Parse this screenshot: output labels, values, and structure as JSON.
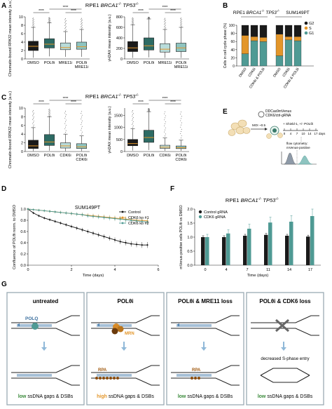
{
  "panels": {
    "A": {
      "letter": "A",
      "title_pre": "RPE1 ",
      "title_gene": "BRCA1",
      "title_sup1": "-/-",
      "title_gene2": " TP53",
      "title_sup2": "-/-"
    },
    "B": {
      "letter": "B",
      "title1_pre": "RPE1 ",
      "title1_gene": "BRCA1",
      "title1_sup1": "-/-",
      "title1_gene2": " TP53",
      "title1_sup2": "-/-",
      "title2": "SUM149PT"
    },
    "C": {
      "letter": "C",
      "title_pre": "RPE1 ",
      "title_gene": "BRCA1",
      "title_sup1": "-/-",
      "title_gene2": " TP53",
      "title_sup2": "-/-"
    },
    "D": {
      "letter": "D",
      "title": "SUM149PT"
    },
    "E": {
      "letter": "E",
      "plasmid_l1": "DDCas9mVenus",
      "plasmid_l2": "CDK6/ctrl-gRNA",
      "moi": "MOI ~0.5",
      "treat": "+ Shield-1, +/- POLθi",
      "days_label": "days",
      "flow_l1": "flow cytometry:",
      "flow_l2": "mVenus-positive"
    },
    "F": {
      "letter": "F",
      "title_pre": "RPE1 ",
      "title_gene": "BRCA1",
      "title_sup1": "-/-",
      "title_gene2": " TP53",
      "title_sup2": "-/-"
    },
    "G": {
      "letter": "G",
      "boxes": [
        {
          "title": "untreated",
          "label": "POLQ",
          "bottom_hl": "low",
          "bottom_rest": " ssDNA gaps & DSBs"
        },
        {
          "title": "POLθi",
          "label": "MRN",
          "label2": "RPA",
          "bottom_hl": "high",
          "bottom_rest": " ssDNA gaps & DSBs"
        },
        {
          "title": "POLθi & MRE11 loss",
          "label": "RPA",
          "bottom_hl": "low",
          "bottom_rest": " ssDNA gaps & DSBs"
        },
        {
          "title": "POLθi & CDK6 loss",
          "mid_text": "decreased S-phase entry",
          "bottom_hl": "low",
          "bottom_rest": " ssDNA gaps & DSBs"
        }
      ]
    }
  },
  "colors": {
    "black": "#1a1a1a",
    "teal_dark": "#2d6b64",
    "teal": "#4f9a94",
    "teal_light": "#8ec4c0",
    "teal_pale": "#b9dcda",
    "orange": "#e3962a",
    "brown": "#a05a10",
    "green_text": "#3a8a3a",
    "grey_box": "#9aaab4"
  },
  "chart_data": [
    {
      "id": "A-left",
      "type": "box",
      "ylabel": "Chromatin-bound RPA32 mean intensity (a.u.)",
      "ylim": [
        0,
        10
      ],
      "yticks": [
        "0",
        "2",
        "4",
        "6",
        "8",
        "10"
      ],
      "categories": [
        "DMSO",
        "POLθi",
        "MRE11i",
        "POLθi\nMRE11i"
      ],
      "stats": [
        {
          "q1": 2.0,
          "median": 3.0,
          "q3": 4.2,
          "whisker_low": 0.3,
          "whisker_high": 7.5
        },
        {
          "q1": 2.6,
          "median": 3.5,
          "q3": 4.8,
          "whisker_low": 0.6,
          "whisker_high": 8.6
        },
        {
          "q1": 2.2,
          "median": 2.7,
          "q3": 3.8,
          "whisker_low": 0.5,
          "whisker_high": 6.5
        },
        {
          "q1": 2.3,
          "median": 2.9,
          "q3": 4.0,
          "whisker_low": 0.5,
          "whisker_high": 7.0
        }
      ],
      "significance": [
        "****",
        "****",
        "****"
      ]
    },
    {
      "id": "A-right",
      "type": "box",
      "ylabel": "γH2AX mean intensity (a.u.)",
      "ylim": [
        0,
        800
      ],
      "yticks": [
        "0",
        "200",
        "400",
        "600",
        "800"
      ],
      "categories": [
        "DMSO",
        "POLθi",
        "MRE11i",
        "POLθi\nMRE11i"
      ],
      "stats": [
        {
          "q1": 140,
          "median": 210,
          "q3": 330,
          "whisker_low": 20,
          "whisker_high": 650
        },
        {
          "q1": 170,
          "median": 250,
          "q3": 400,
          "whisker_low": 30,
          "whisker_high": 760
        },
        {
          "q1": 130,
          "median": 185,
          "q3": 290,
          "whisker_low": 20,
          "whisker_high": 560
        },
        {
          "q1": 140,
          "median": 210,
          "q3": 300,
          "whisker_low": 20,
          "whisker_high": 600
        }
      ],
      "significance": [
        "****",
        "****",
        "****"
      ]
    },
    {
      "id": "B",
      "type": "stacked-bar",
      "ylabel": "Cells in cell cycle phase (%)",
      "ylim": [
        0,
        100
      ],
      "yticks": [
        "0",
        "20",
        "40",
        "60",
        "80",
        "100"
      ],
      "categories": [
        "DMSO",
        "CDK6i",
        "CDK6i & POLθi",
        "DMSO",
        "CDK6i",
        "CDK6i & POLθi"
      ],
      "groups": [
        "RPE1",
        "SUM149PT"
      ],
      "series": [
        {
          "name": "G1",
          "values": [
            30,
            62,
            60,
            25,
            64,
            62
          ]
        },
        {
          "name": "S",
          "values": [
            45,
            10,
            10,
            53,
            8,
            10
          ]
        },
        {
          "name": "G2",
          "values": [
            25,
            28,
            30,
            22,
            28,
            28
          ]
        }
      ]
    },
    {
      "id": "C-left",
      "type": "box",
      "ylabel": "Chromatin-bound RPA32 mean intensity (a.u.)",
      "ylim": [
        0,
        10
      ],
      "yticks": [
        "0",
        "2",
        "4",
        "6",
        "8",
        "10"
      ],
      "categories": [
        "DMSO",
        "POLθi",
        "CDK6i",
        "POLθi\nCDK6i"
      ],
      "stats": [
        {
          "q1": 0.7,
          "median": 1.3,
          "q3": 2.6,
          "whisker_low": 0.1,
          "whisker_high": 5.5
        },
        {
          "q1": 1.4,
          "median": 2.2,
          "q3": 3.9,
          "whisker_low": 0.2,
          "whisker_high": 8.0
        },
        {
          "q1": 0.8,
          "median": 1.3,
          "q3": 2.0,
          "whisker_low": 0.1,
          "whisker_high": 4.0
        },
        {
          "q1": 0.7,
          "median": 1.1,
          "q3": 1.8,
          "whisker_low": 0.1,
          "whisker_high": 3.6
        }
      ],
      "significance": [
        "****",
        "****",
        "****"
      ]
    },
    {
      "id": "C-right",
      "type": "box",
      "ylabel": "γH2AX mean intensity (a.u.)",
      "ylim": [
        0,
        1800
      ],
      "yticks": [
        "0",
        "500",
        "1000",
        "1500"
      ],
      "categories": [
        "DMSO",
        "POLθi",
        "CDK6i",
        "POLθi\nCDK6i"
      ],
      "stats": [
        {
          "q1": 240,
          "median": 330,
          "q3": 500,
          "whisker_low": 40,
          "whisker_high": 950
        },
        {
          "q1": 380,
          "median": 580,
          "q3": 880,
          "whisker_low": 60,
          "whisker_high": 1650
        },
        {
          "q1": 130,
          "median": 180,
          "q3": 260,
          "whisker_low": 30,
          "whisker_high": 560
        },
        {
          "q1": 120,
          "median": 160,
          "q3": 230,
          "whisker_low": 30,
          "whisker_high": 470
        }
      ],
      "significance": [
        "****",
        "****",
        "****"
      ]
    },
    {
      "id": "D",
      "type": "line",
      "xlabel": "Time (days)",
      "ylabel": "Confluence of POLθi norm. to DMSO",
      "xlim": [
        0,
        6
      ],
      "ylim": [
        0,
        1.0
      ],
      "xticks": [
        "0",
        "2",
        "4",
        "6"
      ],
      "yticks": [
        "0.0",
        "0.2",
        "0.4",
        "0.6",
        "0.8",
        "1.0"
      ],
      "legend": "top-right",
      "x": [
        0,
        0.25,
        0.5,
        0.75,
        1.0,
        1.25,
        1.5,
        1.75,
        2.0,
        2.25,
        2.5,
        2.75,
        3.0,
        3.25,
        3.5,
        3.75,
        4.0,
        4.25,
        4.5,
        4.75,
        5.0,
        5.25,
        5.5
      ],
      "series": [
        {
          "name": "Control",
          "color": "#111111",
          "values": [
            1.0,
            0.93,
            0.88,
            0.84,
            0.81,
            0.78,
            0.75,
            0.72,
            0.69,
            0.66,
            0.63,
            0.6,
            0.57,
            0.54,
            0.51,
            0.48,
            0.45,
            0.42,
            0.4,
            0.38,
            0.37,
            0.36,
            0.36
          ]
        },
        {
          "name": "CDK6 ko #1",
          "color": "#e3962a",
          "values": [
            1.0,
            0.99,
            0.98,
            0.97,
            0.96,
            0.95,
            0.94,
            0.93,
            0.92,
            0.91,
            0.9,
            0.89,
            0.88,
            0.87,
            0.86,
            0.85,
            0.84,
            0.83,
            0.82,
            0.81,
            0.8,
            0.8,
            0.79
          ]
        },
        {
          "name": "CDK6 ko #2",
          "color": "#4f9a94",
          "values": [
            1.0,
            0.99,
            0.98,
            0.97,
            0.96,
            0.95,
            0.94,
            0.93,
            0.92,
            0.91,
            0.9,
            0.88,
            0.87,
            0.86,
            0.85,
            0.84,
            0.83,
            0.82,
            0.81,
            0.8,
            0.79,
            0.78,
            0.77
          ]
        }
      ]
    },
    {
      "id": "F",
      "type": "bar",
      "xlabel": "Time (days)",
      "ylabel": "mVenus-positive cells POLθi vs DMSO",
      "ylim": [
        0,
        2.0
      ],
      "yticks": [
        "0.0",
        "0.5",
        "1.0",
        "1.5",
        "2.0"
      ],
      "categories": [
        "0",
        "4",
        "7",
        "11",
        "14",
        "17"
      ],
      "legend": "top-left",
      "series": [
        {
          "name": "Control gRNA",
          "values": [
            1.0,
            1.0,
            1.05,
            1.08,
            1.05,
            1.02
          ]
        },
        {
          "name": "CDK6 gRNA",
          "values": [
            1.0,
            1.13,
            1.3,
            1.52,
            1.55,
            1.75
          ]
        }
      ]
    }
  ]
}
